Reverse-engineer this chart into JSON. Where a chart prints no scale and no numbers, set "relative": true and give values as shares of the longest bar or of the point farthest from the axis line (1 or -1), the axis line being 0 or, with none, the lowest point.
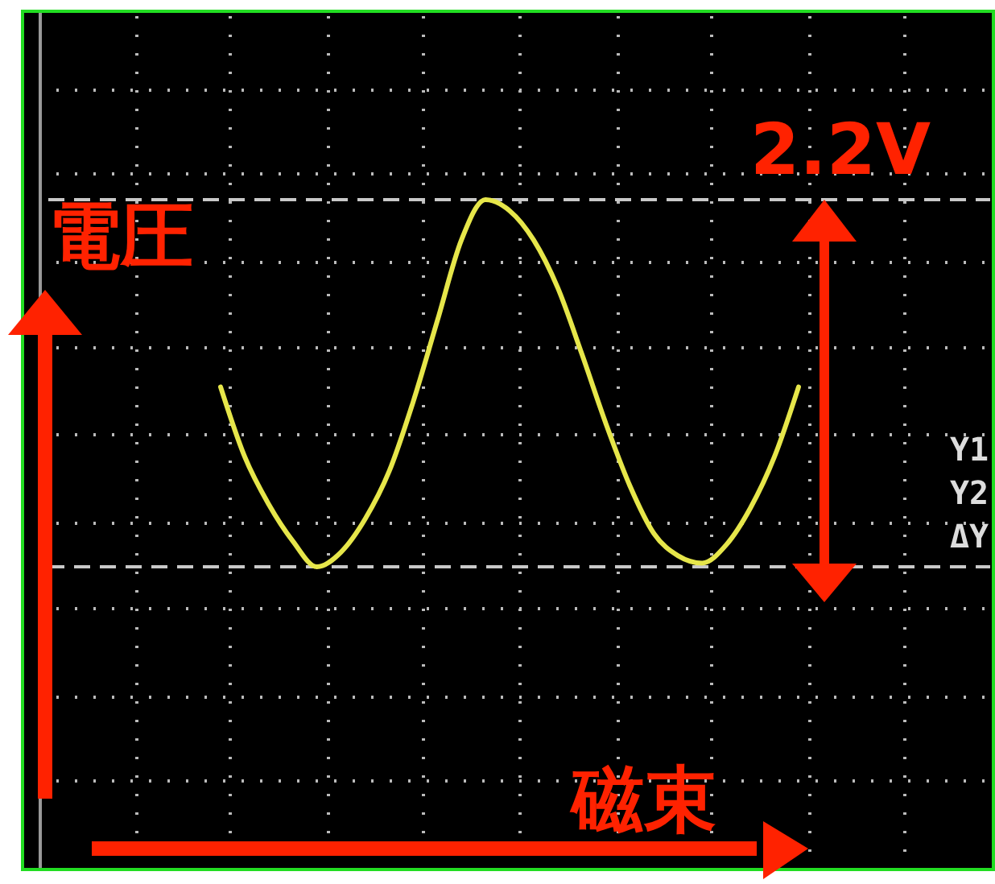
{
  "chart_data": {
    "type": "line",
    "relative": true,
    "xlabel": "磁束",
    "ylabel": "電圧",
    "categories": [
      null,
      null,
      null,
      null,
      null,
      null,
      null,
      null,
      null,
      null,
      null,
      null,
      null,
      null,
      null,
      null,
      null,
      null,
      null,
      null,
      null,
      null,
      null,
      null,
      null
    ],
    "series": [
      {
        "color": "#e6e64a",
        "values": [
          0.49,
          0.3,
          0.17,
          0.07,
          0,
          0.04,
          0.13,
          0.26,
          0.45,
          0.67,
          0.89,
          1,
          0.97,
          0.89,
          0.76,
          0.58,
          0.39,
          0.22,
          0.09,
          0.03,
          0.01,
          0.06,
          0.16,
          0.3,
          0.49
        ]
      }
    ],
    "ref_lines": [
      {
        "axis": "y",
        "value": 1,
        "color": "#c8c8c8",
        "line_style": "dashed"
      },
      {
        "axis": "y",
        "value": 0,
        "color": "#c8c8c8",
        "line_style": "dashed"
      }
    ],
    "annotations": [
      "2.2V",
      "Y1",
      "Y2",
      "ΔY"
    ],
    "grid": true
  }
}
